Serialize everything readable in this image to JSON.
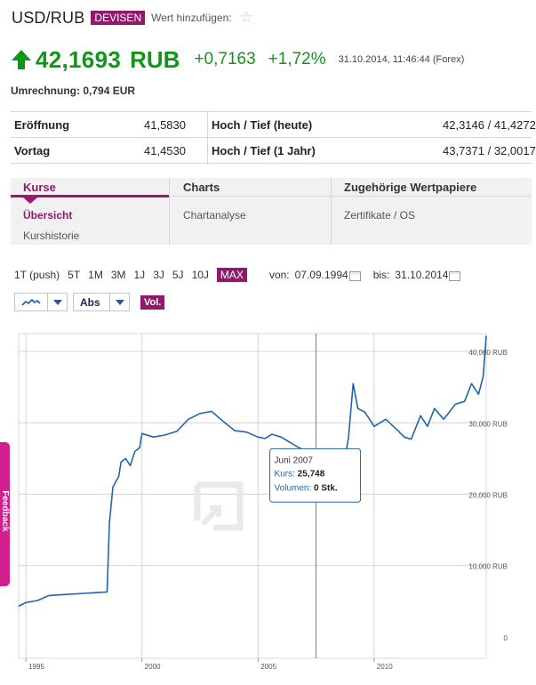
{
  "header": {
    "title": "USD/RUB",
    "badge": "DEVISEN",
    "add_label": "Wert hinzufügen:",
    "star_icon": "star-icon"
  },
  "quote": {
    "price": "42,1693",
    "currency": "RUB",
    "change": "+0,7163",
    "change_pct": "+1,72%",
    "timestamp": "31.10.2014, 11:46:44 (Forex)",
    "trend_icon": "up-arrow-icon",
    "color": "#13951a"
  },
  "conversion": "Umrechnung: 0,794 EUR",
  "stats": [
    {
      "k1": "Eröffnung",
      "v1": "41,5830",
      "k2": "Hoch / Tief (heute)",
      "v2": "42,3146 / 41,4272"
    },
    {
      "k1": "Vortag",
      "v1": "41,4530",
      "k2": "Hoch / Tief (1 Jahr)",
      "v2": "43,7371 / 32,0017"
    }
  ],
  "tabs": {
    "col1": {
      "head": "Kurse",
      "links": [
        "Übersicht",
        "Kurshistorie"
      ]
    },
    "col2": {
      "head": "Charts",
      "links": [
        "Chartanalyse"
      ]
    },
    "col3": {
      "head": "Zugehörige Wertpapiere",
      "links": [
        "Zertifikate / OS"
      ]
    }
  },
  "ranges": {
    "items": [
      "1T (push)",
      "5T",
      "1M",
      "3M",
      "1J",
      "3J",
      "5J",
      "10J",
      "MAX"
    ],
    "selected": "MAX",
    "from_label": "von:",
    "from_value": "07.09.1994",
    "to_label": "bis:",
    "to_value": "31.10.2014"
  },
  "controls": {
    "chart_type_icon": "line-chart-icon",
    "scale": "Abs",
    "volume": "Vol."
  },
  "feedback_label": "Feedback",
  "accent_color": "#8e1a6b",
  "chart_data": {
    "type": "line",
    "series": [
      {
        "values": [
          [
            1994.69,
            4.3
          ],
          [
            1995.0,
            4.8
          ],
          [
            1995.5,
            5.1
          ],
          [
            1996.0,
            5.8
          ],
          [
            1996.5,
            5.9
          ],
          [
            1997.0,
            6.0
          ],
          [
            1997.5,
            6.1
          ],
          [
            1998.0,
            6.2
          ],
          [
            1998.5,
            6.3
          ],
          [
            1998.6,
            16.0
          ],
          [
            1998.75,
            21.0
          ],
          [
            1999.0,
            22.5
          ],
          [
            1999.1,
            24.5
          ],
          [
            1999.3,
            25.0
          ],
          [
            1999.5,
            24.0
          ],
          [
            1999.7,
            26.0
          ],
          [
            1999.9,
            26.5
          ],
          [
            2000.0,
            28.5
          ],
          [
            2000.5,
            28.0
          ],
          [
            2001.0,
            28.3
          ],
          [
            2001.5,
            28.8
          ],
          [
            2002.0,
            30.5
          ],
          [
            2002.5,
            31.3
          ],
          [
            2003.0,
            31.6
          ],
          [
            2003.5,
            30.2
          ],
          [
            2004.0,
            28.9
          ],
          [
            2004.5,
            28.7
          ],
          [
            2005.0,
            28.0
          ],
          [
            2005.3,
            27.8
          ],
          [
            2005.6,
            28.4
          ],
          [
            2006.0,
            28.0
          ],
          [
            2006.5,
            27.0
          ],
          [
            2007.0,
            26.1
          ],
          [
            2007.5,
            25.748
          ],
          [
            2007.8,
            24.6
          ],
          [
            2008.0,
            24.4
          ],
          [
            2008.5,
            23.5
          ],
          [
            2008.7,
            24.0
          ],
          [
            2008.9,
            28.0
          ],
          [
            2009.1,
            35.5
          ],
          [
            2009.3,
            32.0
          ],
          [
            2009.6,
            31.5
          ],
          [
            2010.0,
            29.5
          ],
          [
            2010.5,
            30.5
          ],
          [
            2011.0,
            29.0
          ],
          [
            2011.3,
            28.0
          ],
          [
            2011.6,
            27.7
          ],
          [
            2012.0,
            31.0
          ],
          [
            2012.3,
            29.5
          ],
          [
            2012.6,
            32.0
          ],
          [
            2013.0,
            30.5
          ],
          [
            2013.5,
            32.6
          ],
          [
            2013.9,
            33.0
          ],
          [
            2014.2,
            35.5
          ],
          [
            2014.5,
            34.0
          ],
          [
            2014.7,
            36.5
          ],
          [
            2014.83,
            42.17
          ]
        ]
      }
    ],
    "x_ticks": [
      "1995",
      "2000",
      "2005",
      "2010"
    ],
    "x_tick_values": [
      1995,
      2000,
      2005,
      2010
    ],
    "y_ticks": [
      "40,000 RUB",
      "30,000 RUB",
      "20,000 RUB",
      "10,000 RUB",
      "0"
    ],
    "y_tick_values": [
      40,
      30,
      20,
      10,
      0
    ],
    "xlim": [
      1994.69,
      2014.83
    ],
    "ylim": [
      -3,
      42.5
    ],
    "grid": true,
    "line_color": "#2365ad",
    "tooltip": {
      "date": "Juni 2007",
      "kurs_label": "Kurs:",
      "kurs_value": "25,748",
      "vol_label": "Volumen:",
      "vol_value": "0 Stk.",
      "x": 2007.5,
      "y": 25.748
    },
    "watermark_icon": "ariva-logo-icon"
  }
}
